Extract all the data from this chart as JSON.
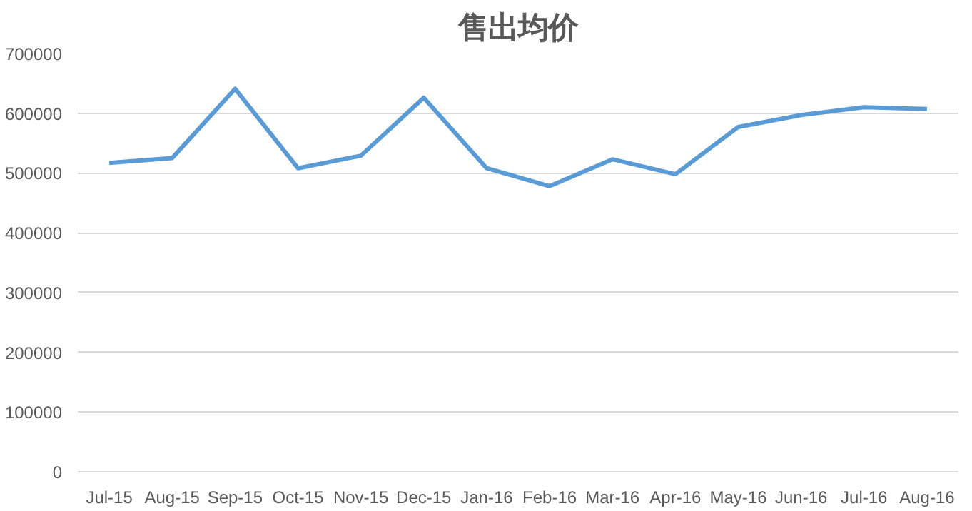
{
  "chart_data": {
    "type": "line",
    "title": "售出均价",
    "categories": [
      "Jul-15",
      "Aug-15",
      "Sep-15",
      "Oct-15",
      "Nov-15",
      "Dec-15",
      "Jan-16",
      "Feb-16",
      "Mar-16",
      "Apr-16",
      "May-16",
      "Jun-16",
      "Jul-16",
      "Aug-16"
    ],
    "series": [
      {
        "color": "#5b9bd5",
        "values": [
          517000,
          525000,
          641000,
          508000,
          529000,
          626000,
          508000,
          478000,
          523000,
          498000,
          577000,
          597000,
          610000,
          607000
        ]
      }
    ],
    "ylim": [
      0,
      700000
    ],
    "yticks": [
      0,
      100000,
      200000,
      300000,
      400000,
      500000,
      600000,
      700000
    ],
    "grid": "y",
    "marker": "none",
    "line_style": "solid"
  }
}
